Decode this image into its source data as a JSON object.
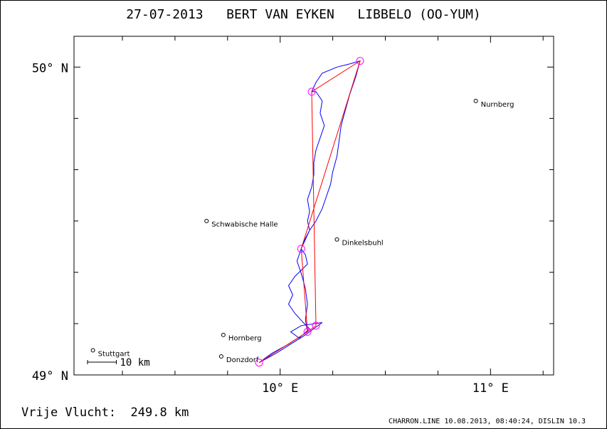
{
  "header": {
    "title": "27-07-2013   BERT VAN EYKEN   LIBBELO (OO-YUM)"
  },
  "footer": {
    "distance": "Vrije Vlucht:  249.8 km",
    "credit": "CHARRON.LINE 10.08.2013, 08:40:24, DISLIN 10.3"
  },
  "colors": {
    "track": "#0000ff",
    "task": "#ff0000",
    "turnpoint": "#ff00ff",
    "axis": "#000000"
  },
  "chart_data": {
    "type": "map",
    "xlim": [
      9.02,
      11.3
    ],
    "ylim": [
      49.0,
      50.1
    ],
    "x_ticks": [
      {
        "value": 10,
        "label": "10° E"
      },
      {
        "value": 11,
        "label": "11° E"
      }
    ],
    "y_ticks": [
      {
        "value": 49,
        "label": "49° N"
      },
      {
        "value": 50,
        "label": "50° N"
      }
    ],
    "scale_bar": {
      "label": "10 km"
    },
    "cities": [
      {
        "name": "Nurnberg",
        "lon": 10.93,
        "lat": 49.89
      },
      {
        "name": "Schwabische Halle",
        "lon": 9.65,
        "lat": 49.5
      },
      {
        "name": "Dinkelsbuhl",
        "lon": 10.27,
        "lat": 49.44
      },
      {
        "name": "Hornberg",
        "lon": 9.73,
        "lat": 49.13
      },
      {
        "name": "Donzdorf",
        "lon": 9.72,
        "lat": 49.06
      },
      {
        "name": "Stuttgart",
        "lon": 9.11,
        "lat": 49.08
      }
    ],
    "turnpoints": [
      {
        "lon": 9.9,
        "lat": 49.04
      },
      {
        "lon": 10.13,
        "lat": 49.14
      },
      {
        "lon": 10.17,
        "lat": 49.16
      },
      {
        "lon": 10.1,
        "lat": 49.41
      },
      {
        "lon": 10.15,
        "lat": 49.92
      },
      {
        "lon": 10.38,
        "lat": 50.02
      }
    ],
    "task_line": [
      [
        9.9,
        49.04
      ],
      [
        10.13,
        49.14
      ],
      [
        10.17,
        49.16
      ],
      [
        10.15,
        49.92
      ],
      [
        10.38,
        50.02
      ],
      [
        10.1,
        49.41
      ],
      [
        10.13,
        49.14
      ],
      [
        9.9,
        49.04
      ]
    ],
    "track": [
      [
        9.9,
        49.04
      ],
      [
        9.98,
        49.07
      ],
      [
        10.05,
        49.1
      ],
      [
        10.12,
        49.13
      ],
      [
        10.2,
        49.17
      ],
      [
        10.1,
        49.16
      ],
      [
        10.05,
        49.14
      ],
      [
        10.09,
        49.12
      ],
      [
        10.14,
        49.15
      ],
      [
        10.11,
        49.17
      ],
      [
        10.07,
        49.2
      ],
      [
        10.04,
        49.23
      ],
      [
        10.06,
        49.26
      ],
      [
        10.04,
        49.29
      ],
      [
        10.07,
        49.32
      ],
      [
        10.1,
        49.34
      ],
      [
        10.13,
        49.36
      ],
      [
        10.12,
        49.39
      ],
      [
        10.1,
        49.41
      ],
      [
        10.12,
        49.44
      ],
      [
        10.14,
        49.47
      ],
      [
        10.13,
        49.5
      ],
      [
        10.14,
        49.53
      ],
      [
        10.13,
        49.57
      ],
      [
        10.15,
        49.61
      ],
      [
        10.16,
        49.65
      ],
      [
        10.16,
        49.69
      ],
      [
        10.17,
        49.73
      ],
      [
        10.19,
        49.77
      ],
      [
        10.21,
        49.81
      ],
      [
        10.19,
        49.85
      ],
      [
        10.2,
        49.89
      ],
      [
        10.17,
        49.92
      ],
      [
        10.15,
        49.92
      ],
      [
        10.17,
        49.95
      ],
      [
        10.2,
        49.98
      ],
      [
        10.27,
        50.0
      ],
      [
        10.33,
        50.01
      ],
      [
        10.38,
        50.02
      ],
      [
        10.36,
        49.97
      ],
      [
        10.33,
        49.91
      ],
      [
        10.31,
        49.86
      ],
      [
        10.29,
        49.81
      ],
      [
        10.28,
        49.76
      ],
      [
        10.27,
        49.71
      ],
      [
        10.25,
        49.66
      ],
      [
        10.24,
        49.62
      ],
      [
        10.22,
        49.58
      ],
      [
        10.2,
        49.54
      ],
      [
        10.17,
        49.5
      ],
      [
        10.14,
        49.47
      ],
      [
        10.11,
        49.43
      ],
      [
        10.1,
        49.41
      ],
      [
        10.08,
        49.37
      ],
      [
        10.1,
        49.33
      ],
      [
        10.12,
        49.28
      ],
      [
        10.13,
        49.23
      ],
      [
        10.12,
        49.18
      ],
      [
        10.13,
        49.14
      ],
      [
        10.04,
        49.1
      ],
      [
        9.96,
        49.07
      ],
      [
        9.9,
        49.04
      ]
    ]
  }
}
